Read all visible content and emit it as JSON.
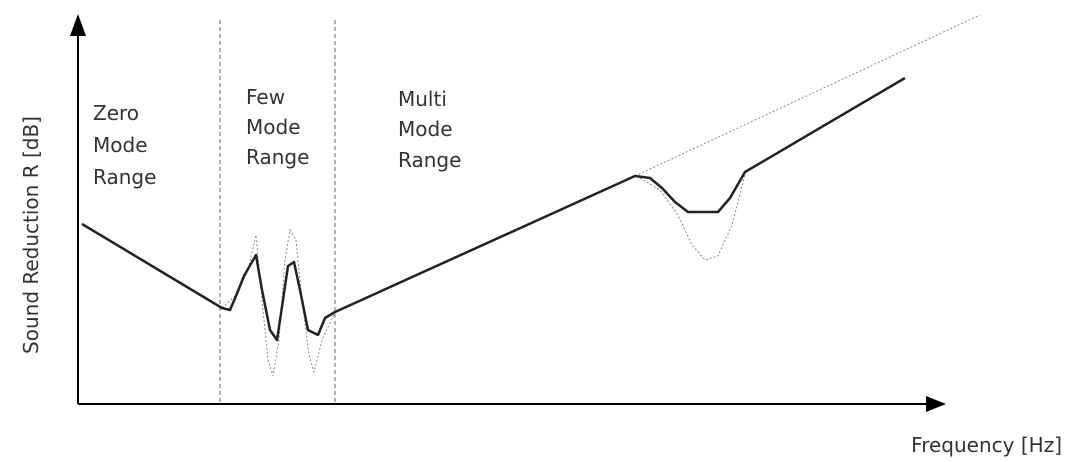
{
  "axes": {
    "y_label": "Sound Reduction R [dB]",
    "x_label": "Frequency [Hz]"
  },
  "regions": [
    {
      "lines": [
        "Zero",
        "Mode",
        "Range"
      ]
    },
    {
      "lines": [
        "Few",
        "Mode",
        "Range"
      ]
    },
    {
      "lines": [
        "Multi",
        "Mode",
        "Range"
      ]
    }
  ]
}
